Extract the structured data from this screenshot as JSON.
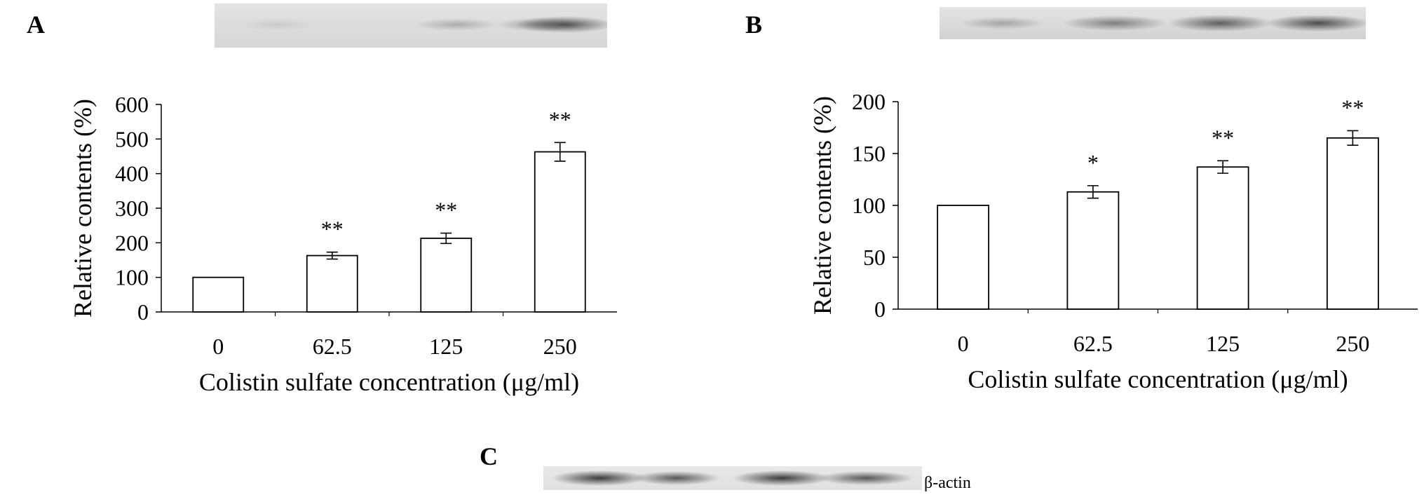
{
  "panels": {
    "a": {
      "letter": "A"
    },
    "b": {
      "letter": "B"
    },
    "c": {
      "letter": "C",
      "band_label": "β-actin"
    }
  },
  "chart_data": [
    {
      "type": "bar",
      "panel": "A",
      "categories": [
        "0",
        "62.5",
        "125",
        "250"
      ],
      "values": [
        100,
        163,
        213,
        463
      ],
      "errors": [
        0,
        10,
        15,
        27
      ],
      "significance": [
        "",
        "**",
        "**",
        "**"
      ],
      "xlabel": "Colistin sulfate concentration (μg/ml)",
      "ylabel": "Relative contents (%)",
      "ylim": [
        0,
        600
      ],
      "yticks": [
        0,
        100,
        200,
        300,
        400,
        500,
        600
      ],
      "grid": false,
      "bar_fill": "#ffffff",
      "bar_stroke": "#000000"
    },
    {
      "type": "bar",
      "panel": "B",
      "categories": [
        "0",
        "62.5",
        "125",
        "250"
      ],
      "values": [
        100,
        113,
        137,
        165
      ],
      "errors": [
        0,
        6,
        6,
        7
      ],
      "significance": [
        "",
        "*",
        "**",
        "**"
      ],
      "xlabel": "Colistin sulfate concentration (μg/ml)",
      "ylabel": "Relative contents (%)",
      "ylim": [
        0,
        200
      ],
      "yticks": [
        0,
        50,
        100,
        150,
        200
      ],
      "grid": false,
      "bar_fill": "#ffffff",
      "bar_stroke": "#000000"
    }
  ]
}
